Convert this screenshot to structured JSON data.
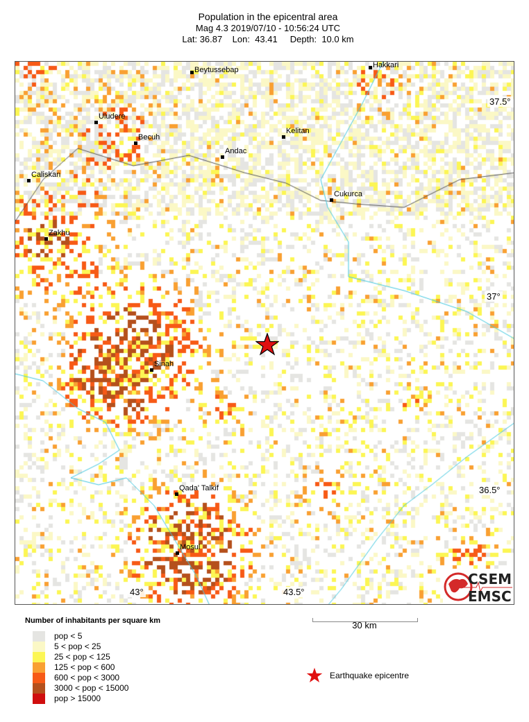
{
  "header": {
    "title": "Population in the epicentral area",
    "line2": "Mag 4.3  2019/07/10 - 10:56:24 UTC",
    "line3": "Lat: 36.87    Lon:  43.41     Depth:  10.0 km"
  },
  "map": {
    "cities": [
      "Beytussebap",
      "Hakkari",
      "Uludere",
      "Becuh",
      "Kelitan",
      "Andac",
      "Caliskan",
      "Cukurca",
      "Zakhu",
      "Sinah",
      "Qada' Talkif",
      "Mosul"
    ],
    "lat_labels": [
      "37.5°",
      "37°",
      "36.5°"
    ],
    "lon_labels": [
      "43°",
      "43.5°"
    ],
    "epicentre_icon": "red-star-icon",
    "colors": {
      "border": "#555555",
      "river": "#40c8e0",
      "epicentre": "#e01010"
    }
  },
  "scale": {
    "label": "30 km"
  },
  "legend": {
    "title": "Number of inhabitants per square km",
    "items": [
      {
        "label": "pop < 5",
        "color": "#e5e5e2"
      },
      {
        "label": "5 < pop < 25",
        "color": "#fbf8c6"
      },
      {
        "label": "25 < pop < 125",
        "color": "#fcf654"
      },
      {
        "label": "125 < pop < 600",
        "color": "#f9a032"
      },
      {
        "label": "600 < pop < 3000",
        "color": "#f75a16"
      },
      {
        "label": "3000 < pop < 15000",
        "color": "#b5501c"
      },
      {
        "label": "pop > 15000",
        "color": "#d00e0e"
      }
    ],
    "epicentre_label": "Earthquake epicentre"
  },
  "logo": {
    "top": "CSEM",
    "bottom": "EMSC"
  }
}
